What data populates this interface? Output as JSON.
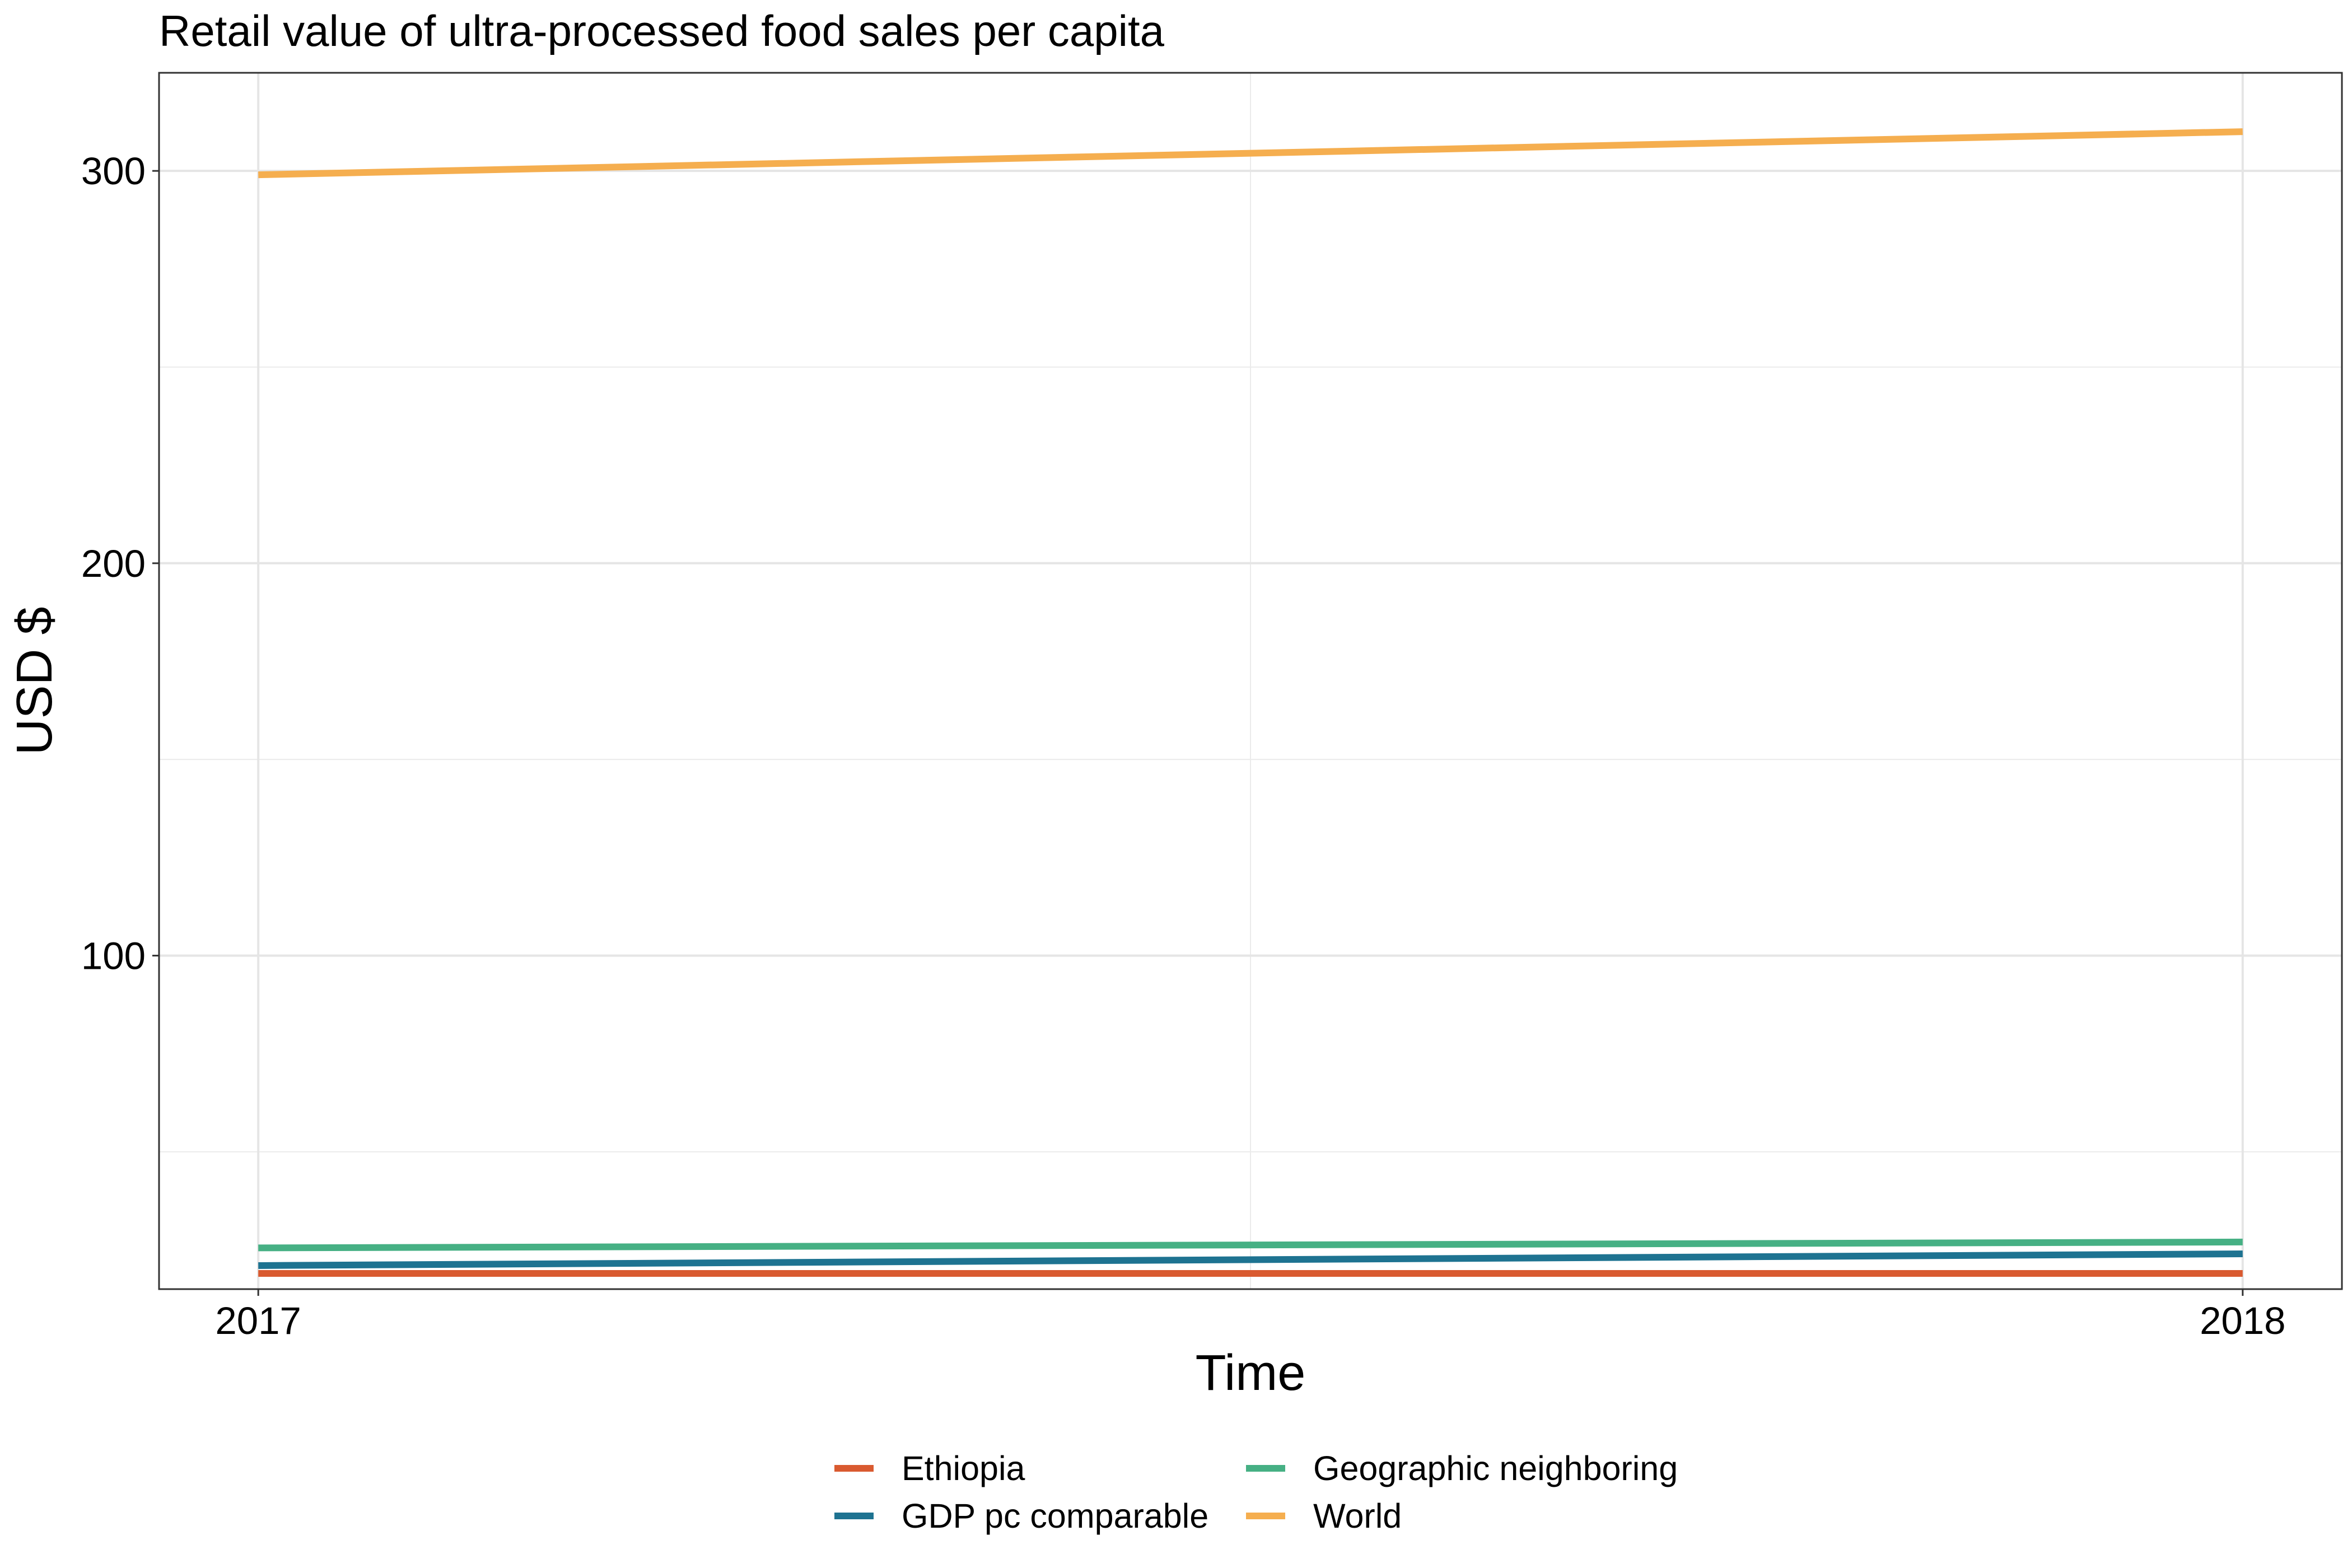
{
  "chart_data": {
    "type": "line",
    "title": "Retail value of ultra-processed food sales per capita",
    "xlabel": "Time",
    "ylabel": "USD $",
    "x": [
      2017,
      2018
    ],
    "x_tick_labels": [
      "2017",
      "2018"
    ],
    "y_ticks": [
      100,
      200,
      300
    ],
    "y_tick_labels": [
      "100",
      "200",
      "300"
    ],
    "xlim": [
      2016.95,
      2018.05
    ],
    "ylim": [
      15,
      325
    ],
    "grid": true,
    "legend_position": "bottom",
    "series": [
      {
        "name": "Ethiopia",
        "color": "#D95A30",
        "values": [
          19,
          19
        ]
      },
      {
        "name": "GDP pc comparable",
        "color": "#1E7391",
        "values": [
          21,
          24
        ]
      },
      {
        "name": "Geographic neighboring",
        "color": "#46B084",
        "values": [
          25.5,
          27
        ]
      },
      {
        "name": "World",
        "color": "#F5AE4F",
        "values": [
          299,
          310
        ]
      }
    ]
  }
}
